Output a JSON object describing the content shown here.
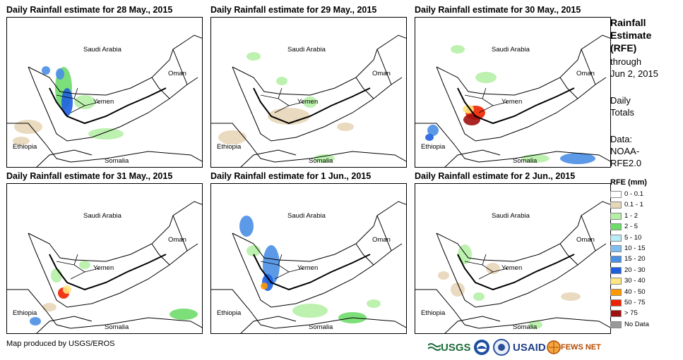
{
  "panels": [
    {
      "title": "Daily Rainfall estimate for 28 May., 2015",
      "labels": {
        "saudi": "Saudi Arabia",
        "oman": "Oman",
        "yemen": "Yemen",
        "ethiopia": "Ethiopia",
        "somalia": "Somalia"
      }
    },
    {
      "title": "Daily Rainfall estimate for 29 May., 2015",
      "labels": {
        "saudi": "Saudi Arabia",
        "oman": "Oman",
        "yemen": "Yemen",
        "ethiopia": "Ethiopia",
        "somalia": "Somalia"
      }
    },
    {
      "title": "Daily Rainfall estimate for 30 May., 2015",
      "labels": {
        "saudi": "Saudi Arabia",
        "oman": "Oman",
        "yemen": "Yemen",
        "ethiopia": "Ethiopia",
        "somalia": "Somalia"
      }
    },
    {
      "title": "Daily Rainfall estimate for 31 May., 2015",
      "labels": {
        "saudi": "Saudi Arabia",
        "oman": "Oman",
        "yemen": "Yemen",
        "ethiopia": "Ethiopia",
        "somalia": "Somalia"
      }
    },
    {
      "title": "Daily Rainfall estimate for 1 Jun., 2015",
      "labels": {
        "saudi": "Saudi Arabia",
        "oman": "Oman",
        "yemen": "Yemen",
        "ethiopia": "Ethiopia",
        "somalia": "Somalia"
      }
    },
    {
      "title": "Daily Rainfall estimate for 2 Jun., 2015",
      "labels": {
        "saudi": "Saudi Arabia",
        "oman": "Oman",
        "yemen": "Yemen",
        "ethiopia": "Ethiopia",
        "somalia": "Somalia"
      }
    }
  ],
  "sidebar": {
    "heading_1": "Rainfall",
    "heading_2": "Estimate",
    "heading_3": "(RFE)",
    "through": "through",
    "date": "Jun 2, 2015",
    "daily": "Daily",
    "totals": "Totals",
    "data_label": "Data:",
    "data_source_1": "NOAA-",
    "data_source_2": "RFE2.0"
  },
  "legend": {
    "title": "RFE (mm)",
    "items": [
      {
        "label": "0 - 0.1",
        "color": "#ffffff"
      },
      {
        "label": "0.1 - 1",
        "color": "#e8d6b8"
      },
      {
        "label": "1 - 2",
        "color": "#b6f0a6"
      },
      {
        "label": "2 - 5",
        "color": "#6fdc6a"
      },
      {
        "label": "5 - 10",
        "color": "#b8ecf6"
      },
      {
        "label": "10 - 15",
        "color": "#7fbff0"
      },
      {
        "label": "15 - 20",
        "color": "#4a8fe6"
      },
      {
        "label": "20 - 30",
        "color": "#1e5fe0"
      },
      {
        "label": "30 - 40",
        "color": "#ffe680"
      },
      {
        "label": "40 - 50",
        "color": "#ff9900"
      },
      {
        "label": "50 - 75",
        "color": "#ee2200"
      },
      {
        "label": "> 75",
        "color": "#a01010"
      },
      {
        "label": "No Data",
        "color": "#999999"
      }
    ]
  },
  "footer": {
    "credit": "Map produced by USGS/EROS"
  },
  "logos": {
    "usgs": "USGS",
    "usaid": "USAID",
    "fews": "FEWS NET"
  }
}
